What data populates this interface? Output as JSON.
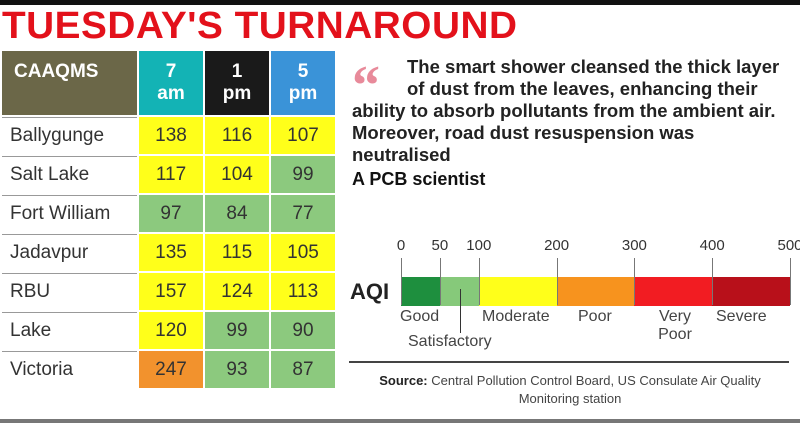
{
  "title": "TUESDAY'S TURNAROUND",
  "table": {
    "header": {
      "name": "CAAQMS",
      "times": [
        {
          "h": "7",
          "p": "am"
        },
        {
          "h": "1",
          "p": "pm"
        },
        {
          "h": "5",
          "p": "pm"
        }
      ]
    },
    "rows": [
      {
        "station": "Ballygunge",
        "values": [
          "138",
          "116",
          "107"
        ],
        "colors": [
          "y",
          "y",
          "y"
        ]
      },
      {
        "station": "Salt Lake",
        "values": [
          "117",
          "104",
          "99"
        ],
        "colors": [
          "y",
          "y",
          "g"
        ]
      },
      {
        "station": "Fort William",
        "values": [
          "97",
          "84",
          "77"
        ],
        "colors": [
          "g",
          "g",
          "g"
        ]
      },
      {
        "station": "Jadavpur",
        "values": [
          "135",
          "115",
          "105"
        ],
        "colors": [
          "y",
          "y",
          "y"
        ]
      },
      {
        "station": "RBU",
        "values": [
          "157",
          "124",
          "113"
        ],
        "colors": [
          "y",
          "y",
          "y"
        ]
      },
      {
        "station": "Lake",
        "values": [
          "120",
          "99",
          "90"
        ],
        "colors": [
          "y",
          "g",
          "g"
        ]
      },
      {
        "station": "Victoria",
        "values": [
          "247",
          "93",
          "87"
        ],
        "colors": [
          "o",
          "g",
          "g"
        ]
      }
    ]
  },
  "quote": {
    "text": "The smart shower cleansed the thick layer of dust from the leaves, enhancing their ability to absorb pollutants from the ambient air. Moreover, road dust resuspension was neutralised",
    "author": "A PCB scientist"
  },
  "aqi": {
    "label": "AQI",
    "ticks": [
      "0",
      "50",
      "100",
      "200",
      "300",
      "400",
      "500"
    ],
    "bands": [
      {
        "name": "Good",
        "from": 0,
        "to": 50,
        "color": "#1e8f3e"
      },
      {
        "name": "Satisfactory",
        "from": 50,
        "to": 100,
        "color": "#86c97a"
      },
      {
        "name": "Moderate",
        "from": 100,
        "to": 200,
        "color": "#ffff1a"
      },
      {
        "name": "Poor",
        "from": 200,
        "to": 300,
        "color": "#f7931e"
      },
      {
        "name": "Very Poor",
        "from": 300,
        "to": 400,
        "color": "#f21c22"
      },
      {
        "name": "Severe",
        "from": 400,
        "to": 500,
        "color": "#b8101a"
      }
    ]
  },
  "source": {
    "label": "Source:",
    "text": " Central Pollution Control Board, US Consulate Air Quality Monitoring station"
  }
}
